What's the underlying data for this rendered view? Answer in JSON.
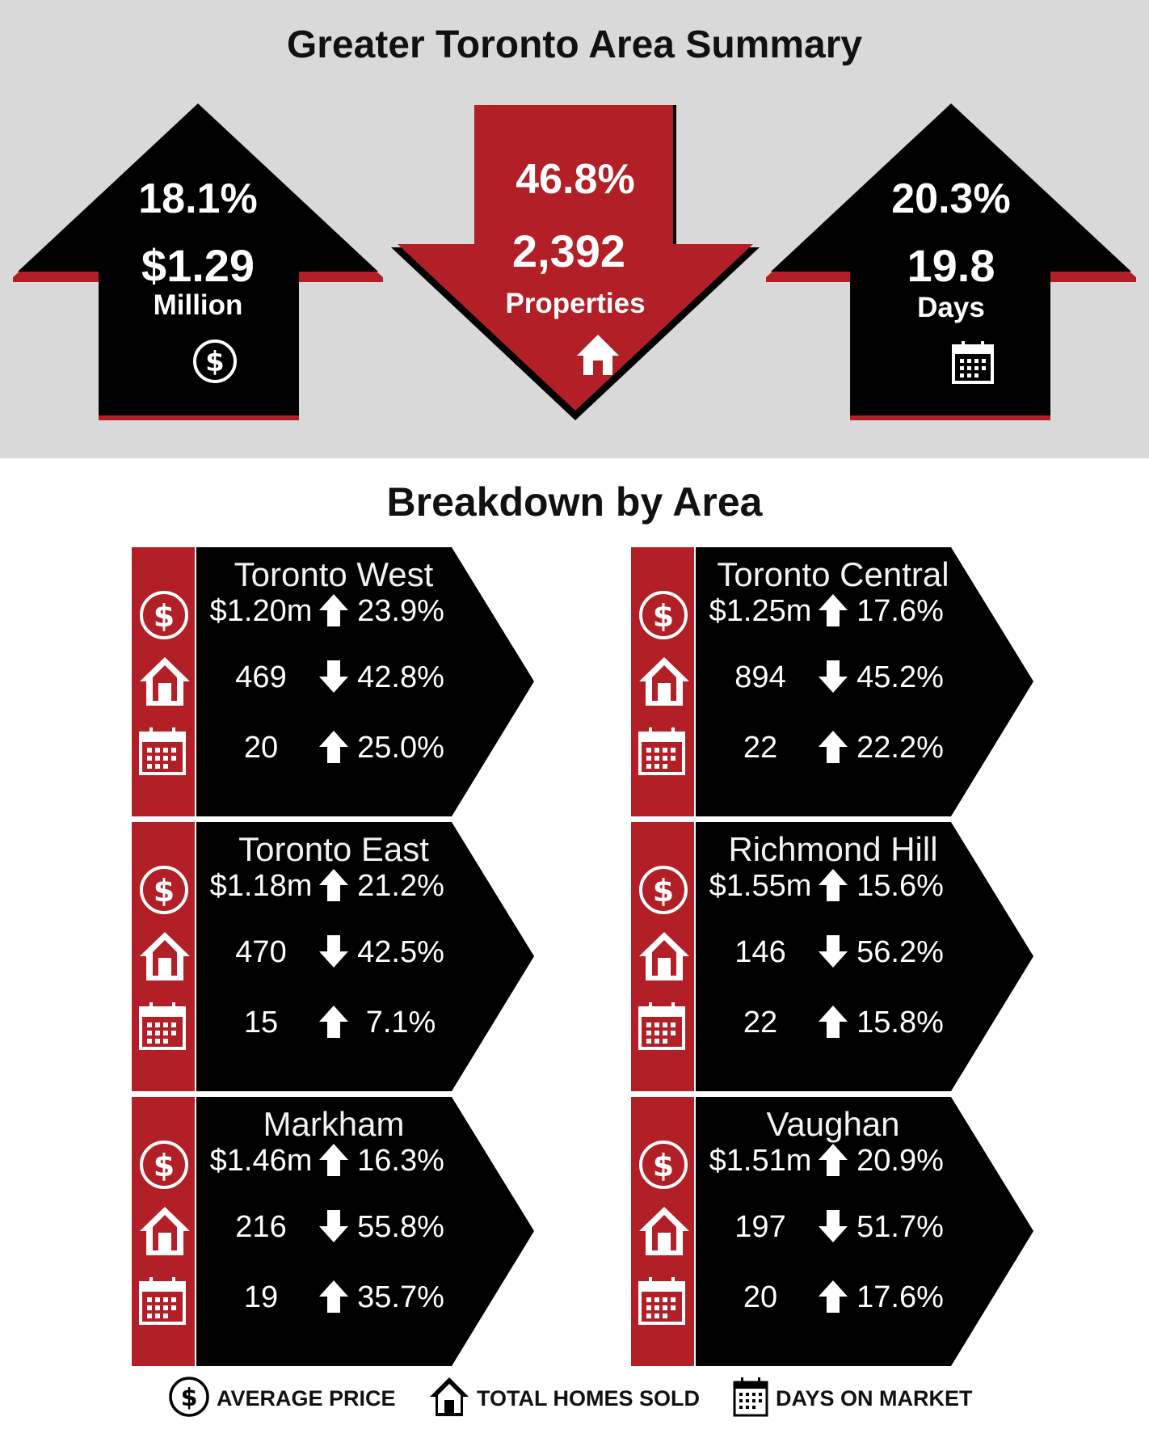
{
  "summary": {
    "title": "Greater Toronto Area Summary",
    "price": {
      "pct": "18.1%",
      "value": "$1.29",
      "unit": "Million",
      "direction": "up",
      "icon": "dollar-icon"
    },
    "sold": {
      "pct": "46.8%",
      "value": "2,392",
      "unit": "Properties",
      "direction": "down",
      "icon": "house-icon"
    },
    "days": {
      "pct": "20.3%",
      "value": "19.8",
      "unit": "Days",
      "direction": "up",
      "icon": "calendar-icon"
    }
  },
  "breakdown": {
    "title": "Breakdown by Area",
    "areas": [
      {
        "name": "Toronto West",
        "rows": [
          {
            "value": "$1.20m",
            "dir": "up",
            "pct": "23.9%"
          },
          {
            "value": "469",
            "dir": "down",
            "pct": "42.8%"
          },
          {
            "value": "20",
            "dir": "up",
            "pct": "25.0%"
          }
        ]
      },
      {
        "name": "Toronto Central",
        "rows": [
          {
            "value": "$1.25m",
            "dir": "up",
            "pct": "17.6%"
          },
          {
            "value": "894",
            "dir": "down",
            "pct": "45.2%"
          },
          {
            "value": "22",
            "dir": "up",
            "pct": "22.2%"
          }
        ]
      },
      {
        "name": "Toronto East",
        "rows": [
          {
            "value": "$1.18m",
            "dir": "up",
            "pct": "21.2%"
          },
          {
            "value": "470",
            "dir": "down",
            "pct": "42.5%"
          },
          {
            "value": "15",
            "dir": "up",
            "pct": "7.1%"
          }
        ]
      },
      {
        "name": "Richmond Hill",
        "rows": [
          {
            "value": "$1.55m",
            "dir": "up",
            "pct": "15.6%"
          },
          {
            "value": "146",
            "dir": "down",
            "pct": "56.2%"
          },
          {
            "value": "22",
            "dir": "up",
            "pct": "15.8%"
          }
        ]
      },
      {
        "name": "Markham",
        "rows": [
          {
            "value": "$1.46m",
            "dir": "up",
            "pct": "16.3%"
          },
          {
            "value": "216",
            "dir": "down",
            "pct": "55.8%"
          },
          {
            "value": "19",
            "dir": "up",
            "pct": "35.7%"
          }
        ]
      },
      {
        "name": "Vaughan",
        "rows": [
          {
            "value": "$1.51m",
            "dir": "up",
            "pct": "20.9%"
          },
          {
            "value": "197",
            "dir": "down",
            "pct": "51.7%"
          },
          {
            "value": "20",
            "dir": "up",
            "pct": "17.6%"
          }
        ]
      }
    ]
  },
  "legend": {
    "price": "AVERAGE PRICE",
    "sold": "TOTAL HOMES SOLD",
    "days": "DAYS ON MARKET"
  },
  "colors": {
    "red": "#b21f26",
    "black": "#000000",
    "panel": "#d9d9d9"
  }
}
